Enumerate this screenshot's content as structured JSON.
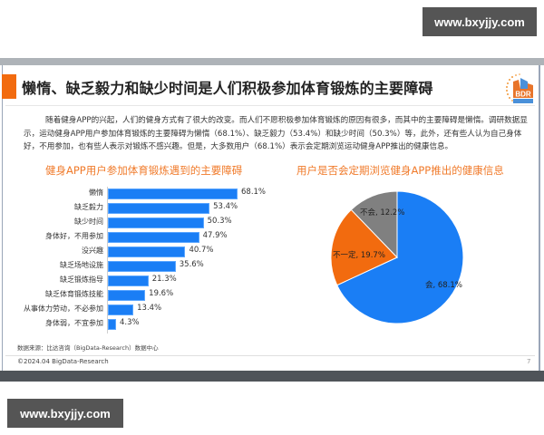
{
  "watermark": {
    "top": "www.bxyjjy.com",
    "bottom": "www.bxyjjy.com"
  },
  "slide": {
    "title": "懒惰、缺乏毅力和缺少时间是人们积极参加体育锻炼的主要障碍",
    "logo": {
      "text": "BDR",
      "subtext": "比达咨询"
    },
    "paragraph": "随着健身APP的兴起，人们的健身方式有了很大的改变。而人们不愿积极参加体育锻炼的原因有很多，而其中的主要障碍是懒惰。调研数据显示，运动健身APP用户参加体育锻炼的主要障碍为懒惰（68.1%）、缺乏毅力（53.4%）和缺少时间（50.3%）等，此外，还有些人认为自己身体好，不用参加，也有些人表示对锻炼不感兴趣。但是，大多数用户（68.1%）表示会定期浏览运动健身APP推出的健康信息。",
    "source": "数据来源：比达咨询（BigData-Research）数据中心",
    "copyright": "©2024.04 BigData-Research",
    "page_number": "7"
  },
  "colors": {
    "accent": "#f26b0f",
    "bar": "#1a7ef5",
    "pie_yes": "#1a7ef5",
    "pie_maybe": "#f26b0f",
    "pie_no": "#808080",
    "chart_title": "#f07a2a"
  },
  "chart_data": [
    {
      "type": "bar",
      "orientation": "horizontal",
      "title": "健身APP用户参加体育锻炼遇到的主要障碍",
      "categories": [
        "懒惰",
        "缺乏毅力",
        "缺少时间",
        "身体好，不用参加",
        "没兴趣",
        "缺乏场地设施",
        "缺乏锻炼指导",
        "缺乏体育锻炼技能",
        "从事体力劳动，不必参加",
        "身体弱，不宜参加"
      ],
      "values": [
        68.1,
        53.4,
        50.3,
        47.9,
        40.7,
        35.6,
        21.3,
        19.6,
        13.4,
        4.3
      ],
      "value_labels": [
        "68.1%",
        "53.4%",
        "50.3%",
        "47.9%",
        "40.7%",
        "35.6%",
        "21.3%",
        "19.6%",
        "13.4%",
        "4.3%"
      ],
      "xlabel": "",
      "ylabel": "",
      "grid": false,
      "legend": "none"
    },
    {
      "type": "pie",
      "title": "用户是否会定期浏览健身APP推出的健康信息",
      "categories": [
        "会",
        "不一定",
        "不会"
      ],
      "values": [
        68.1,
        19.7,
        12.2
      ],
      "labels": [
        "会, 68.1%",
        "不一定, 19.7%",
        "不会, 12.2%"
      ],
      "legend": "none"
    }
  ]
}
